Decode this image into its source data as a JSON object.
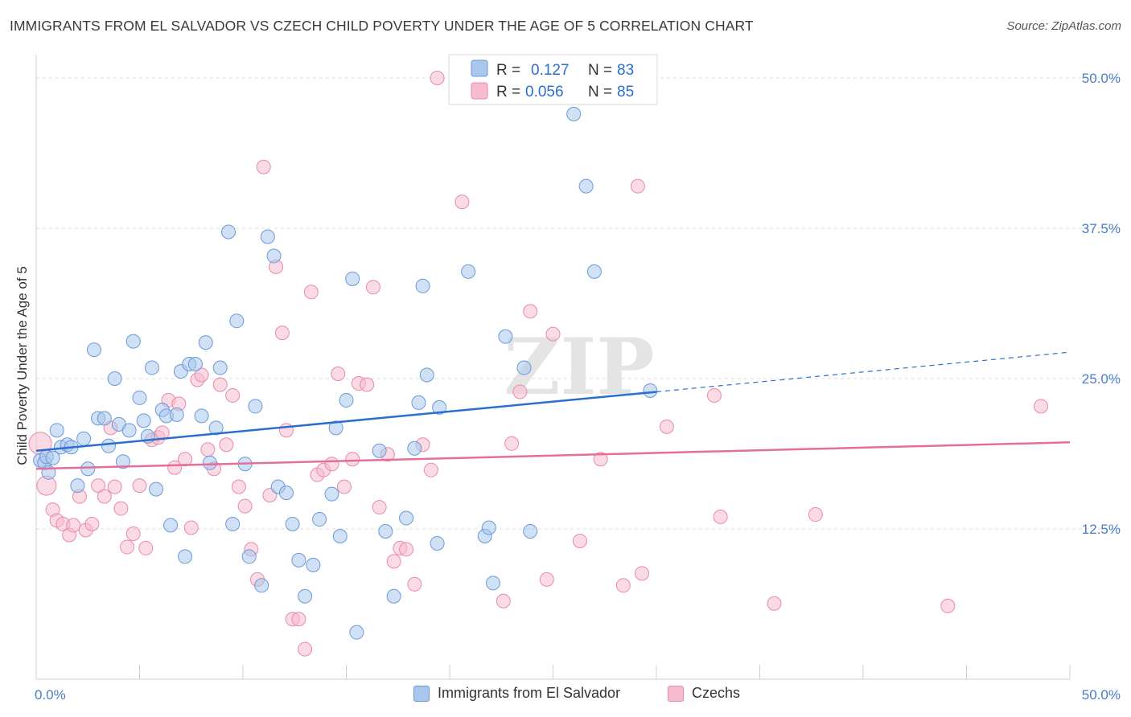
{
  "header": {
    "title": "IMMIGRANTS FROM EL SALVADOR VS CZECH CHILD POVERTY UNDER THE AGE OF 5 CORRELATION CHART",
    "source": "Source: ZipAtlas.com"
  },
  "watermark": "ZIPatlas",
  "legend_box": {
    "rows": [
      {
        "r_label": "R =",
        "r_value": "0.127",
        "n_label": "N =",
        "n_value": "83"
      },
      {
        "r_label": "R =",
        "r_value": "0.056",
        "n_label": "N =",
        "n_value": "85"
      }
    ]
  },
  "bottom_legend": {
    "series1": "Immigrants from El Salvador",
    "series2": "Czechs"
  },
  "colors": {
    "blue_fill": "#a9c6ec",
    "blue_stroke": "#6b9ad8",
    "blue_line": "#2a6fcf",
    "pink_fill": "#f6bccd",
    "pink_stroke": "#e98aa8",
    "pink_line": "#e46e9b",
    "tick_blue": "#4a7cc7",
    "grid": "#dddddd"
  },
  "chart_data": {
    "type": "scatter",
    "title": "IMMIGRANTS FROM EL SALVADOR VS CZECH CHILD POVERTY UNDER THE AGE OF 5 CORRELATION CHART",
    "xlabel": "",
    "ylabel": "Child Poverty Under the Age of 5",
    "xlim": [
      0,
      50
    ],
    "ylim": [
      0,
      50
    ],
    "x_tick_labels": [
      "0.0%",
      "50.0%"
    ],
    "y_ticks": [
      12.5,
      25.0,
      37.5,
      50.0
    ],
    "y_tick_labels": [
      "12.5%",
      "25.0%",
      "37.5%",
      "50.0%"
    ],
    "grid": true,
    "legend_position": "top-center",
    "series": [
      {
        "name": "Immigrants from El Salvador",
        "color": "#a9c6ec",
        "r": 0.127,
        "n": 83,
        "trend": {
          "x0": 0,
          "y0": 19.0,
          "x1": 30,
          "y1": 23.9,
          "dashed_to_x": 50,
          "dashed_to_y": 27.2
        },
        "points": [
          [
            0.2,
            18.2
          ],
          [
            0.4,
            18.0
          ],
          [
            0.5,
            18.5
          ],
          [
            0.6,
            17.2
          ],
          [
            0.8,
            18.4
          ],
          [
            1.0,
            20.7
          ],
          [
            1.2,
            19.3
          ],
          [
            1.5,
            19.5
          ],
          [
            1.7,
            19.3
          ],
          [
            2.0,
            16.1
          ],
          [
            2.3,
            20.0
          ],
          [
            2.5,
            17.5
          ],
          [
            2.8,
            27.4
          ],
          [
            3.0,
            21.7
          ],
          [
            3.3,
            21.7
          ],
          [
            3.5,
            19.4
          ],
          [
            3.8,
            25.0
          ],
          [
            4.0,
            21.2
          ],
          [
            4.2,
            18.1
          ],
          [
            4.5,
            20.7
          ],
          [
            4.7,
            28.1
          ],
          [
            5.0,
            23.4
          ],
          [
            5.2,
            21.5
          ],
          [
            5.4,
            20.2
          ],
          [
            5.6,
            25.9
          ],
          [
            5.8,
            15.8
          ],
          [
            6.1,
            22.4
          ],
          [
            6.3,
            21.9
          ],
          [
            6.5,
            12.8
          ],
          [
            6.8,
            22.0
          ],
          [
            7.0,
            25.6
          ],
          [
            7.2,
            10.2
          ],
          [
            7.4,
            26.2
          ],
          [
            7.7,
            26.2
          ],
          [
            8.0,
            21.9
          ],
          [
            8.2,
            28.0
          ],
          [
            8.4,
            18.0
          ],
          [
            8.7,
            20.9
          ],
          [
            8.9,
            25.9
          ],
          [
            9.3,
            37.2
          ],
          [
            9.5,
            12.9
          ],
          [
            9.7,
            29.8
          ],
          [
            10.1,
            17.9
          ],
          [
            10.3,
            10.2
          ],
          [
            10.6,
            22.7
          ],
          [
            10.9,
            7.8
          ],
          [
            11.2,
            36.8
          ],
          [
            11.5,
            35.2
          ],
          [
            11.7,
            16.0
          ],
          [
            12.1,
            15.5
          ],
          [
            12.4,
            12.9
          ],
          [
            12.7,
            9.9
          ],
          [
            13.0,
            6.9
          ],
          [
            13.4,
            9.5
          ],
          [
            13.7,
            13.3
          ],
          [
            14.3,
            15.4
          ],
          [
            14.5,
            20.9
          ],
          [
            14.7,
            11.9
          ],
          [
            15.0,
            23.2
          ],
          [
            15.3,
            33.3
          ],
          [
            15.5,
            3.9
          ],
          [
            16.6,
            19.0
          ],
          [
            16.9,
            12.3
          ],
          [
            17.3,
            6.9
          ],
          [
            17.9,
            13.4
          ],
          [
            18.3,
            19.2
          ],
          [
            18.5,
            23.0
          ],
          [
            18.7,
            32.7
          ],
          [
            18.9,
            25.3
          ],
          [
            19.4,
            11.3
          ],
          [
            19.5,
            22.6
          ],
          [
            20.9,
            33.9
          ],
          [
            21.7,
            11.9
          ],
          [
            21.9,
            12.6
          ],
          [
            22.1,
            8.0
          ],
          [
            22.7,
            28.5
          ],
          [
            23.6,
            25.9
          ],
          [
            23.9,
            12.3
          ],
          [
            26.0,
            47.0
          ],
          [
            26.6,
            41.0
          ],
          [
            27.0,
            33.9
          ],
          [
            29.7,
            24.0
          ]
        ]
      },
      {
        "name": "Czechs",
        "color": "#f6bccd",
        "r": 0.056,
        "n": 85,
        "trend": {
          "x0": 0,
          "y0": 17.5,
          "x1": 50,
          "y1": 19.7
        },
        "points": [
          [
            0.2,
            19.6
          ],
          [
            0.5,
            16.1
          ],
          [
            0.8,
            14.1
          ],
          [
            1.0,
            13.2
          ],
          [
            1.3,
            12.9
          ],
          [
            1.6,
            12.0
          ],
          [
            1.8,
            12.8
          ],
          [
            2.1,
            15.2
          ],
          [
            2.4,
            12.4
          ],
          [
            2.7,
            12.9
          ],
          [
            3.0,
            16.1
          ],
          [
            3.3,
            15.2
          ],
          [
            3.6,
            20.9
          ],
          [
            3.8,
            16.0
          ],
          [
            4.1,
            14.2
          ],
          [
            4.4,
            11.0
          ],
          [
            4.7,
            12.1
          ],
          [
            5.0,
            16.1
          ],
          [
            5.3,
            10.9
          ],
          [
            5.6,
            19.9
          ],
          [
            5.9,
            20.1
          ],
          [
            6.1,
            20.5
          ],
          [
            6.4,
            23.2
          ],
          [
            6.7,
            17.6
          ],
          [
            6.9,
            22.9
          ],
          [
            7.2,
            18.3
          ],
          [
            7.5,
            12.6
          ],
          [
            7.8,
            24.9
          ],
          [
            8.0,
            25.3
          ],
          [
            8.3,
            19.1
          ],
          [
            8.6,
            17.5
          ],
          [
            8.9,
            24.5
          ],
          [
            9.2,
            19.5
          ],
          [
            9.5,
            23.6
          ],
          [
            9.8,
            16.0
          ],
          [
            10.1,
            14.4
          ],
          [
            10.4,
            10.8
          ],
          [
            10.7,
            8.3
          ],
          [
            11.0,
            42.6
          ],
          [
            11.3,
            15.3
          ],
          [
            11.6,
            34.3
          ],
          [
            11.9,
            28.8
          ],
          [
            12.1,
            20.7
          ],
          [
            12.4,
            5.0
          ],
          [
            12.7,
            5.0
          ],
          [
            13.0,
            2.5
          ],
          [
            13.3,
            32.2
          ],
          [
            13.6,
            17.0
          ],
          [
            13.9,
            17.4
          ],
          [
            14.3,
            17.9
          ],
          [
            14.6,
            25.4
          ],
          [
            14.9,
            16.0
          ],
          [
            15.3,
            18.3
          ],
          [
            15.6,
            24.6
          ],
          [
            16.0,
            24.5
          ],
          [
            16.3,
            32.6
          ],
          [
            16.6,
            14.3
          ],
          [
            17.0,
            18.7
          ],
          [
            17.3,
            9.8
          ],
          [
            17.6,
            10.9
          ],
          [
            17.9,
            10.8
          ],
          [
            18.3,
            7.9
          ],
          [
            18.7,
            19.5
          ],
          [
            19.1,
            17.4
          ],
          [
            19.4,
            50.0
          ],
          [
            20.6,
            39.7
          ],
          [
            22.6,
            6.5
          ],
          [
            23.0,
            19.6
          ],
          [
            23.4,
            23.9
          ],
          [
            23.9,
            30.6
          ],
          [
            24.7,
            8.3
          ],
          [
            25.0,
            28.7
          ],
          [
            26.3,
            11.5
          ],
          [
            27.3,
            18.3
          ],
          [
            28.4,
            7.8
          ],
          [
            29.1,
            41.0
          ],
          [
            29.3,
            8.8
          ],
          [
            30.5,
            21.0
          ],
          [
            32.8,
            23.6
          ],
          [
            33.1,
            13.5
          ],
          [
            35.7,
            6.3
          ],
          [
            37.7,
            13.7
          ],
          [
            44.1,
            6.1
          ],
          [
            48.6,
            22.7
          ]
        ]
      }
    ]
  }
}
